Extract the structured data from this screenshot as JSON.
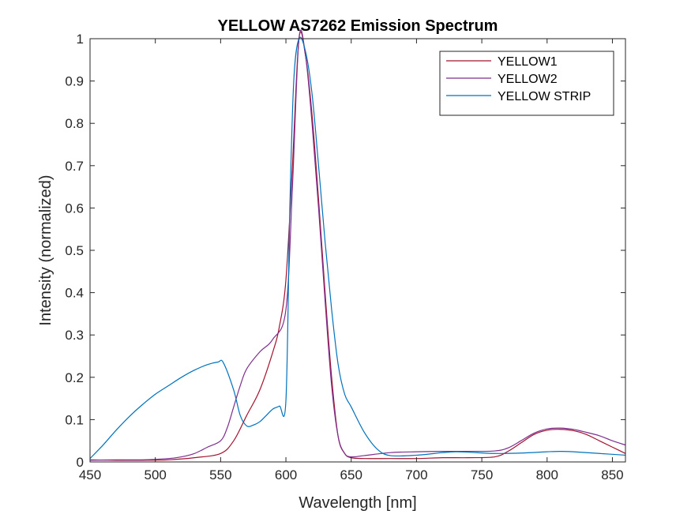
{
  "chart_data": {
    "type": "line",
    "title": "YELLOW AS7262 Emission Spectrum",
    "xlabel": "Wavelength [nm]",
    "ylabel": "Intensity (normalized)",
    "xlim": [
      450,
      860
    ],
    "ylim": [
      0,
      1
    ],
    "xticks": [
      450,
      500,
      550,
      600,
      650,
      700,
      750,
      800,
      850
    ],
    "yticks": [
      0,
      0.1,
      0.2,
      0.3,
      0.4,
      0.5,
      0.6,
      0.7,
      0.8,
      0.9,
      1
    ],
    "ytick_labels": [
      "0",
      "0.1",
      "0.2",
      "0.3",
      "0.4",
      "0.5",
      "0.6",
      "0.7",
      "0.8",
      "0.9",
      "1"
    ],
    "grid": false,
    "legend_position": "top-right",
    "series": [
      {
        "name": "YELLOW1",
        "color": "#A2142F",
        "x": [
          450,
          470,
          490,
          510,
          530,
          550,
          560,
          570,
          580,
          590,
          595,
          600,
          605,
          610,
          615,
          620,
          625,
          630,
          635,
          640,
          645,
          650,
          660,
          680,
          700,
          720,
          740,
          760,
          770,
          780,
          790,
          800,
          810,
          820,
          830,
          840,
          850,
          860
        ],
        "y": [
          0.005,
          0.004,
          0.004,
          0.005,
          0.01,
          0.02,
          0.05,
          0.11,
          0.17,
          0.26,
          0.32,
          0.43,
          0.7,
          1.0,
          0.96,
          0.82,
          0.62,
          0.4,
          0.2,
          0.06,
          0.02,
          0.01,
          0.008,
          0.008,
          0.008,
          0.01,
          0.01,
          0.012,
          0.025,
          0.045,
          0.065,
          0.075,
          0.077,
          0.074,
          0.065,
          0.05,
          0.035,
          0.02
        ]
      },
      {
        "name": "YELLOW2",
        "color": "#7E2F8E",
        "x": [
          450,
          470,
          490,
          510,
          520,
          530,
          540,
          550,
          555,
          560,
          565,
          570,
          580,
          590,
          600,
          605,
          610,
          615,
          620,
          625,
          630,
          635,
          640,
          645,
          650,
          660,
          680,
          700,
          720,
          740,
          760,
          770,
          780,
          790,
          800,
          810,
          820,
          830,
          840,
          850,
          860
        ],
        "y": [
          0.004,
          0.005,
          0.005,
          0.008,
          0.012,
          0.02,
          0.035,
          0.05,
          0.08,
          0.13,
          0.18,
          0.22,
          0.26,
          0.29,
          0.36,
          0.65,
          1.0,
          0.96,
          0.8,
          0.6,
          0.38,
          0.18,
          0.06,
          0.02,
          0.012,
          0.015,
          0.022,
          0.024,
          0.025,
          0.025,
          0.026,
          0.033,
          0.05,
          0.068,
          0.078,
          0.08,
          0.077,
          0.07,
          0.062,
          0.05,
          0.04
        ]
      },
      {
        "name": "YELLOW STRIP",
        "color": "#0072BD",
        "x": [
          450,
          460,
          470,
          480,
          490,
          500,
          510,
          520,
          530,
          540,
          548,
          552,
          560,
          565,
          570,
          575,
          580,
          585,
          590,
          595,
          600,
          603,
          606,
          610,
          615,
          620,
          625,
          630,
          635,
          640,
          645,
          650,
          660,
          670,
          680,
          700,
          720,
          730,
          740,
          760,
          780,
          800,
          810,
          820,
          840,
          860
        ],
        "y": [
          0.008,
          0.04,
          0.075,
          0.107,
          0.135,
          0.16,
          0.18,
          0.2,
          0.217,
          0.23,
          0.236,
          0.235,
          0.17,
          0.11,
          0.085,
          0.087,
          0.095,
          0.11,
          0.125,
          0.132,
          0.145,
          0.6,
          0.9,
          1.0,
          0.97,
          0.87,
          0.7,
          0.52,
          0.36,
          0.23,
          0.16,
          0.13,
          0.07,
          0.03,
          0.015,
          0.016,
          0.022,
          0.024,
          0.023,
          0.02,
          0.021,
          0.024,
          0.025,
          0.024,
          0.02,
          0.016
        ]
      }
    ]
  }
}
